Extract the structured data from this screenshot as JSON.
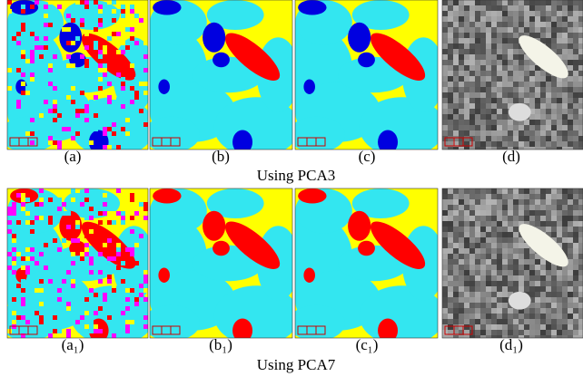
{
  "rows": [
    {
      "labels": [
        "(a)",
        "(b)",
        "(c)",
        "(d)"
      ],
      "caption": "Using PCA3"
    },
    {
      "labels": [
        "(a₁)",
        "(b₁)",
        "(c₁)",
        "(d₁)"
      ],
      "caption": "Using PCA7"
    }
  ]
}
